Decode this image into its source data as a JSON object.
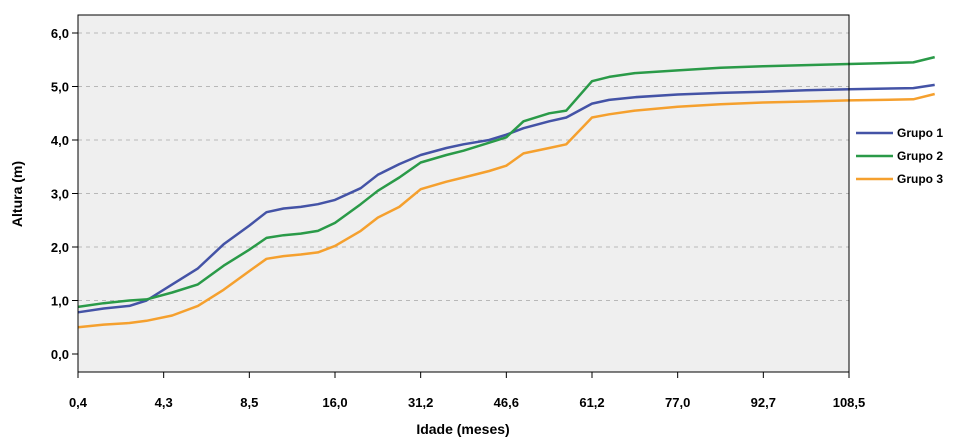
{
  "chart_data": {
    "type": "line",
    "title": "",
    "xlabel": "Idade (meses)",
    "ylabel": "Altura (m)",
    "ylim": [
      -0.35,
      6.35
    ],
    "yticks": [
      "0,0",
      "1,0",
      "2,0",
      "3,0",
      "4,0",
      "5,0",
      "6,0"
    ],
    "xticks": [
      "0,4",
      "4,3",
      "8,5",
      "16,0",
      "31,2",
      "46,6",
      "61,2",
      "77,0",
      "92,7",
      "108,5"
    ],
    "grid": "horizontal-dashed",
    "legend_position": "right",
    "background": "#efefef",
    "series": [
      {
        "name": "Grupo 1",
        "color": "#4453a6",
        "x": [
          0,
          0.3,
          0.6,
          0.8,
          1.1,
          1.4,
          1.7,
          2.0,
          2.2,
          2.4,
          2.6,
          2.8,
          3.0,
          3.3,
          3.5,
          3.75,
          4.0,
          4.3,
          4.5,
          4.8,
          5.0,
          5.2,
          5.5,
          5.7,
          6.0,
          6.2,
          6.5,
          7.0,
          7.5,
          8.0,
          8.5,
          9.0,
          9.75,
          10.0
        ],
        "y": [
          0.78,
          0.85,
          0.9,
          1.0,
          1.3,
          1.6,
          2.05,
          2.4,
          2.65,
          2.72,
          2.75,
          2.8,
          2.88,
          3.1,
          3.35,
          3.55,
          3.72,
          3.85,
          3.92,
          4.0,
          4.1,
          4.22,
          4.35,
          4.42,
          4.68,
          4.75,
          4.8,
          4.85,
          4.88,
          4.9,
          4.93,
          4.95,
          4.97,
          5.03
        ]
      },
      {
        "name": "Grupo 2",
        "color": "#2a9a48",
        "x": [
          0,
          0.3,
          0.6,
          0.8,
          1.1,
          1.4,
          1.7,
          2.0,
          2.2,
          2.4,
          2.6,
          2.8,
          3.0,
          3.3,
          3.5,
          3.75,
          4.0,
          4.3,
          4.5,
          4.8,
          5.0,
          5.2,
          5.5,
          5.7,
          6.0,
          6.2,
          6.5,
          7.0,
          7.5,
          8.0,
          8.5,
          9.0,
          9.75,
          10.0
        ],
        "y": [
          0.88,
          0.95,
          1.0,
          1.02,
          1.15,
          1.3,
          1.65,
          1.95,
          2.17,
          2.22,
          2.25,
          2.3,
          2.45,
          2.8,
          3.05,
          3.3,
          3.58,
          3.72,
          3.8,
          3.95,
          4.05,
          4.35,
          4.5,
          4.55,
          5.1,
          5.18,
          5.25,
          5.3,
          5.35,
          5.38,
          5.4,
          5.42,
          5.45,
          5.55
        ]
      },
      {
        "name": "Grupo 3",
        "color": "#f5a02e",
        "x": [
          0,
          0.3,
          0.6,
          0.8,
          1.1,
          1.4,
          1.7,
          2.0,
          2.2,
          2.4,
          2.6,
          2.8,
          3.0,
          3.3,
          3.5,
          3.75,
          4.0,
          4.3,
          4.5,
          4.8,
          5.0,
          5.2,
          5.5,
          5.7,
          6.0,
          6.2,
          6.5,
          7.0,
          7.5,
          8.0,
          8.5,
          9.0,
          9.75,
          10.0
        ],
        "y": [
          0.5,
          0.55,
          0.58,
          0.62,
          0.72,
          0.9,
          1.2,
          1.55,
          1.78,
          1.83,
          1.86,
          1.9,
          2.02,
          2.3,
          2.55,
          2.75,
          3.08,
          3.22,
          3.3,
          3.42,
          3.52,
          3.75,
          3.85,
          3.92,
          4.42,
          4.48,
          4.55,
          4.62,
          4.67,
          4.7,
          4.72,
          4.74,
          4.76,
          4.86
        ]
      }
    ]
  }
}
